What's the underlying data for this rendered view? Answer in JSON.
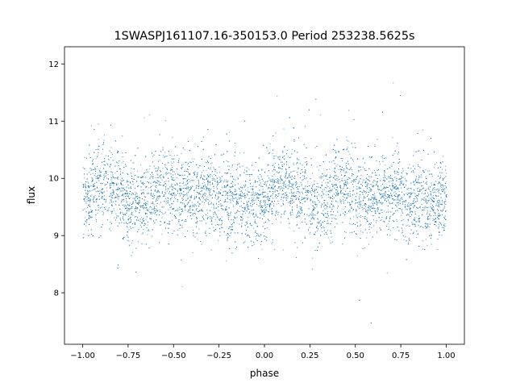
{
  "chart_data": {
    "type": "scatter",
    "title": "1SWASPJ161107.16-350153.0 Period 253238.5625s",
    "xlabel": "phase",
    "ylabel": "flux",
    "xlim": [
      -1.1,
      1.1
    ],
    "ylim": [
      7.1,
      12.3
    ],
    "x_ticks": [
      "−1.00",
      "−0.75",
      "−0.50",
      "−0.25",
      "0.00",
      "0.25",
      "0.50",
      "0.75",
      "1.00"
    ],
    "y_ticks": [
      "8",
      "9",
      "10",
      "11",
      "12"
    ],
    "grid": false,
    "legend": "none",
    "point_color": "#1f77b4",
    "series": [
      {
        "points_description_profile": {
          "phase_range": [
            -1.0,
            1.0
          ],
          "period_in_phase": 1.0,
          "mean_flux_by_phase": [
            {
              "phase": 0.0,
              "flux": 9.65
            },
            {
              "phase": 0.05,
              "flux": 9.8
            },
            {
              "phase": 0.1,
              "flux": 9.9
            },
            {
              "phase": 0.15,
              "flux": 9.85
            },
            {
              "phase": 0.2,
              "flux": 9.75
            },
            {
              "phase": 0.25,
              "flux": 9.6
            },
            {
              "phase": 0.3,
              "flux": 9.55
            },
            {
              "phase": 0.35,
              "flux": 9.6
            },
            {
              "phase": 0.4,
              "flux": 9.85
            },
            {
              "phase": 0.45,
              "flux": 9.9
            },
            {
              "phase": 0.5,
              "flux": 9.75
            },
            {
              "phase": 0.55,
              "flux": 9.7
            },
            {
              "phase": 0.6,
              "flux": 9.7
            },
            {
              "phase": 0.65,
              "flux": 9.75
            },
            {
              "phase": 0.7,
              "flux": 9.75
            },
            {
              "phase": 0.75,
              "flux": 9.7
            },
            {
              "phase": 0.8,
              "flux": 9.65
            },
            {
              "phase": 0.85,
              "flux": 9.6
            },
            {
              "phase": 0.9,
              "flux": 9.55
            },
            {
              "phase": 0.95,
              "flux": 9.55
            },
            {
              "phase": 1.0,
              "flux": 9.65
            }
          ],
          "scatter_sigma": 0.35
        }
      }
    ]
  }
}
